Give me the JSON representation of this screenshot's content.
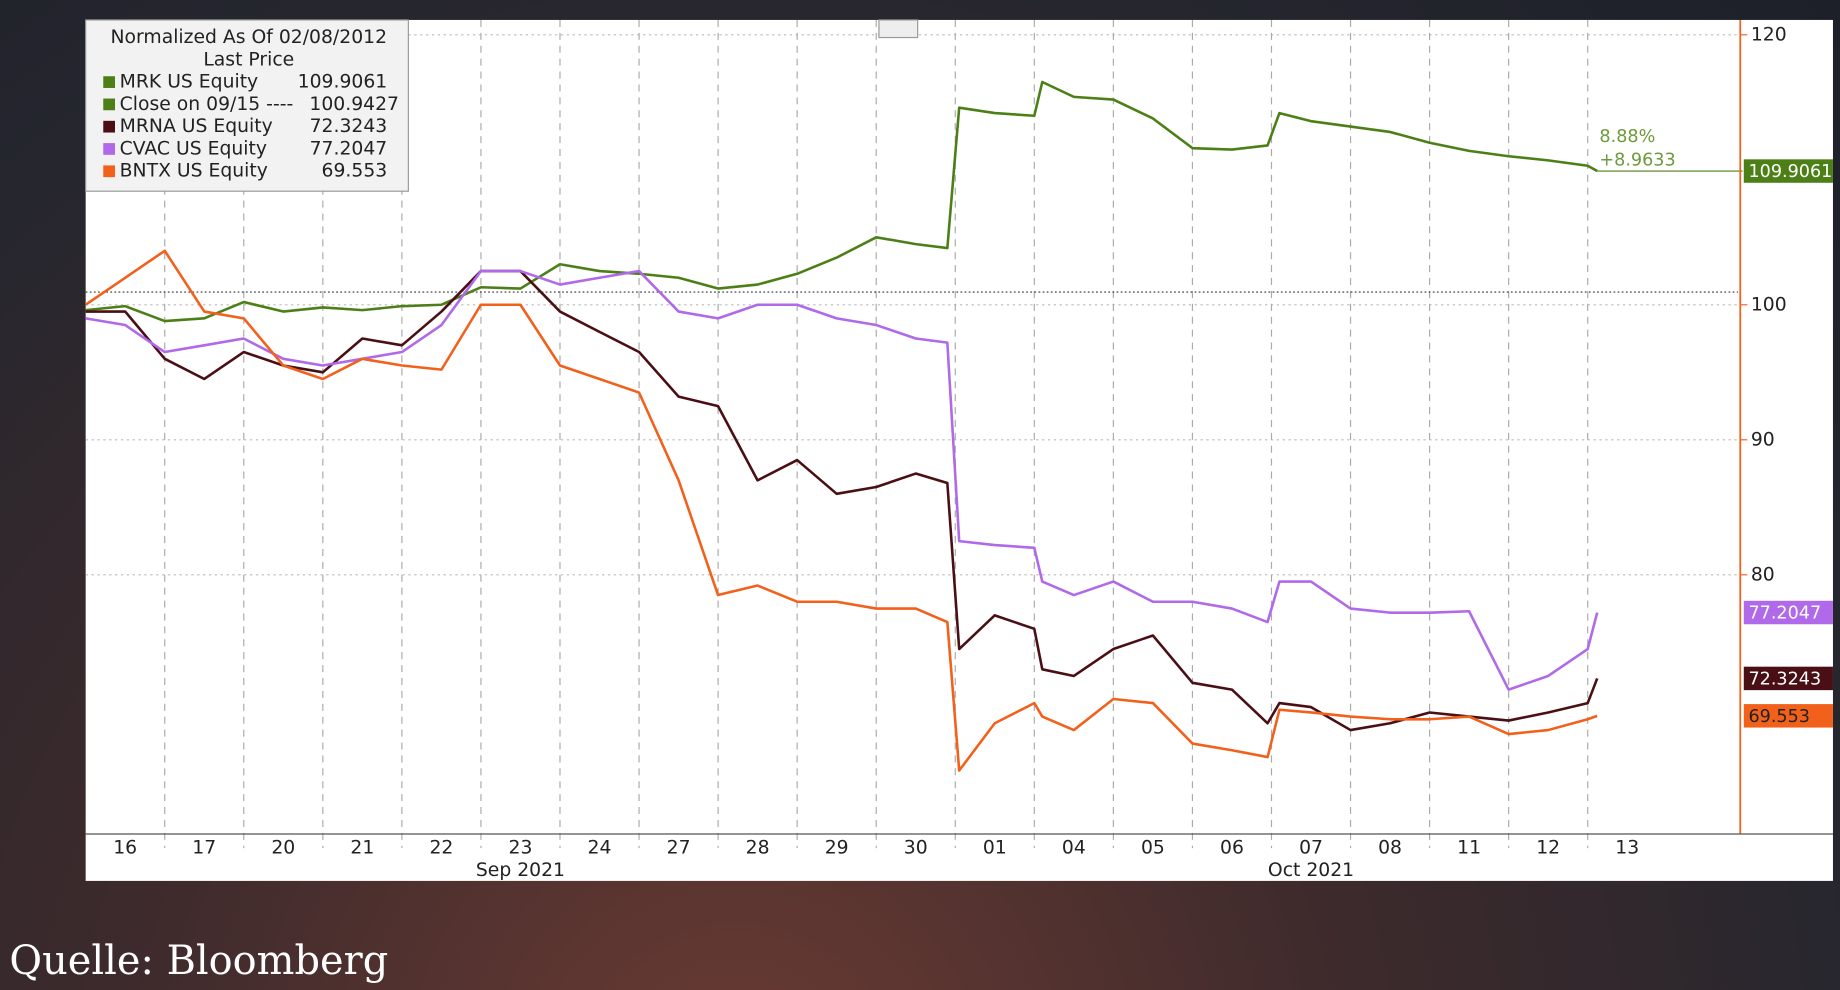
{
  "chart_data": {
    "type": "line",
    "legend_title": "Normalized As Of 02/08/2012",
    "legend_subtitle": "Last Price",
    "x": [
      0,
      0.5,
      1,
      1.5,
      2,
      2.5,
      3,
      3.5,
      4,
      4.5,
      5,
      5.5,
      6,
      6.5,
      7,
      7.5,
      8,
      8.5,
      9,
      9.5,
      10,
      10.5,
      10.9,
      11.05,
      11.5,
      12,
      12.1,
      12.5,
      13,
      13.5,
      14,
      14.5,
      14.95,
      15.1,
      15.5,
      16,
      16.5,
      17,
      17.5,
      18,
      18.5,
      19,
      19.12
    ],
    "xlim": [
      0,
      20.9
    ],
    "xticks": [
      {
        "value": 0.5,
        "label": "16"
      },
      {
        "value": 1.5,
        "label": "17"
      },
      {
        "value": 2.5,
        "label": "20"
      },
      {
        "value": 3.5,
        "label": "21"
      },
      {
        "value": 4.5,
        "label": "22"
      },
      {
        "value": 5.5,
        "label": "23"
      },
      {
        "value": 6.5,
        "label": "24"
      },
      {
        "value": 7.5,
        "label": "27"
      },
      {
        "value": 8.5,
        "label": "28"
      },
      {
        "value": 9.5,
        "label": "29"
      },
      {
        "value": 10.5,
        "label": "30"
      },
      {
        "value": 11.5,
        "label": "01"
      },
      {
        "value": 12.5,
        "label": "04"
      },
      {
        "value": 13.5,
        "label": "05"
      },
      {
        "value": 14.5,
        "label": "06"
      },
      {
        "value": 15.5,
        "label": "07"
      },
      {
        "value": 16.5,
        "label": "08"
      },
      {
        "value": 17.5,
        "label": "11"
      },
      {
        "value": 18.5,
        "label": "12"
      },
      {
        "value": 19.5,
        "label": "13"
      }
    ],
    "x_groups": [
      {
        "label": "Sep 2021",
        "value": 5.5
      },
      {
        "label": "Oct 2021",
        "value": 15.5
      }
    ],
    "ylim": [
      60.8,
      121.1
    ],
    "yticks": [
      80,
      90,
      100,
      120
    ],
    "grid": true,
    "series": [
      {
        "name": "MRK US Equity",
        "color": "#4d7f17",
        "values": [
          99.6,
          99.9,
          98.8,
          99.0,
          100.2,
          99.5,
          99.8,
          99.6,
          99.9,
          100.0,
          101.3,
          101.2,
          103.0,
          102.5,
          102.3,
          102.0,
          101.2,
          101.5,
          102.3,
          103.5,
          105.0,
          104.5,
          104.2,
          114.6,
          114.2,
          114.0,
          116.5,
          115.4,
          115.2,
          113.8,
          111.6,
          111.5,
          111.8,
          114.2,
          113.6,
          113.2,
          112.8,
          112.0,
          111.4,
          111.0,
          110.7,
          110.3,
          109.9061
        ]
      },
      {
        "name": "MRNA US Equity",
        "color": "#4a0f14",
        "values": [
          99.5,
          99.5,
          96,
          94.5,
          96.5,
          95.5,
          95,
          97.5,
          97,
          99.5,
          102.5,
          102.5,
          99.5,
          98,
          96.5,
          93.2,
          92.5,
          87,
          88.5,
          86,
          86.5,
          87.5,
          86.8,
          74.5,
          77,
          76,
          73,
          72.5,
          74.5,
          75.5,
          72,
          71.5,
          69,
          70.5,
          70.2,
          68.5,
          69,
          69.8,
          69.5,
          69.2,
          69.8,
          70.5,
          72.3243
        ]
      },
      {
        "name": "CVAC US Equity",
        "color": "#b069e8",
        "values": [
          99,
          98.5,
          96.5,
          97,
          97.5,
          96,
          95.5,
          96,
          96.5,
          98.5,
          102.5,
          102.5,
          101.5,
          102,
          102.5,
          99.5,
          99,
          100,
          100,
          99,
          98.5,
          97.5,
          97.2,
          82.5,
          82.2,
          82,
          79.5,
          78.5,
          79.5,
          78,
          78,
          77.5,
          76.5,
          79.5,
          79.5,
          77.5,
          77.2,
          77.2,
          77.3,
          71.5,
          72.5,
          74.5,
          77.2047
        ]
      },
      {
        "name": "BNTX US Equity",
        "color": "#f2611c",
        "values": [
          100,
          102,
          104,
          99.5,
          99,
          95.5,
          94.5,
          96,
          95.5,
          95.2,
          100,
          100,
          95.5,
          94.5,
          93.5,
          87,
          78.5,
          79.2,
          78,
          78,
          77.5,
          77.5,
          76.5,
          65.5,
          69,
          70.5,
          69.5,
          68.5,
          70.8,
          70.5,
          67.5,
          67,
          66.5,
          70,
          69.8,
          69.5,
          69.3,
          69.3,
          69.5,
          68.2,
          68.5,
          69.3,
          69.553
        ]
      }
    ],
    "reference_line": {
      "name": "Close on 09/15 ----",
      "value": 100.9427,
      "color": "#4d7f17"
    },
    "annotations": [
      "8.88%",
      "+8.9633"
    ],
    "source": "Quelle: Bloomberg"
  }
}
